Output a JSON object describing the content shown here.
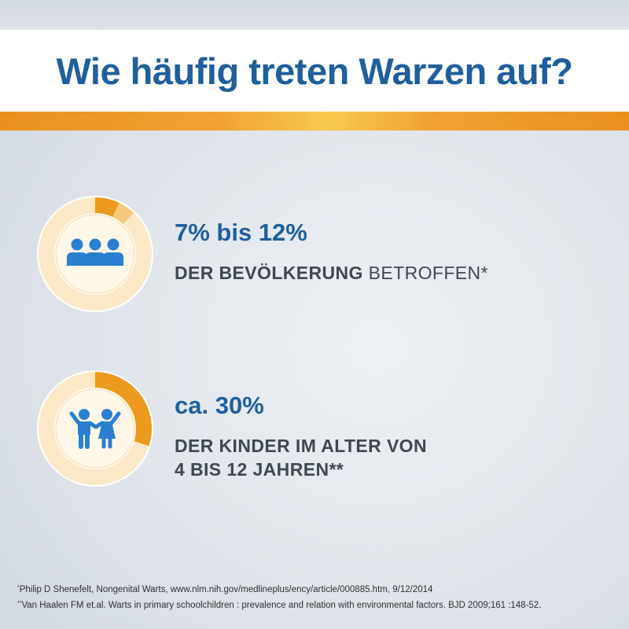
{
  "title": "Wie häufig treten Warzen auf?",
  "colors": {
    "title_blue": "#1f5f9c",
    "icon_blue": "#2b7fd0",
    "orange": "#eb9a1f",
    "light_orange": "#f6c879",
    "ring_cream": "#fbe8c6",
    "inner_cream": "#fff7e8",
    "text_dark": "#3f4750"
  },
  "stats": [
    {
      "headline": "7% bis 12%",
      "desc_bold": "DER BEVÖLKERUNG",
      "desc_rest": " BETROFFEN*",
      "icon": "group-of-people-icon",
      "share_min": 0.07,
      "share_max": 0.12
    },
    {
      "headline": "ca. 30%",
      "desc_line1": "DER KINDER IM ALTER VON",
      "desc_line2": "4 BIS 12 JAHREN**",
      "icon": "two-children-icon",
      "share": 0.3
    }
  ],
  "footnotes": [
    {
      "marker": "*",
      "text": "Philip D Shenefelt, Nongenital Warts, www.nlm.nih.gov/medlineplus/ency/article/000885.htm, 9/12/2014"
    },
    {
      "marker": "**",
      "text": "Van Haalen FM et.al. Warts in primary schoolchildren : prevalence and relation with environmental factors. BJD 2009;161 :148-52."
    }
  ]
}
